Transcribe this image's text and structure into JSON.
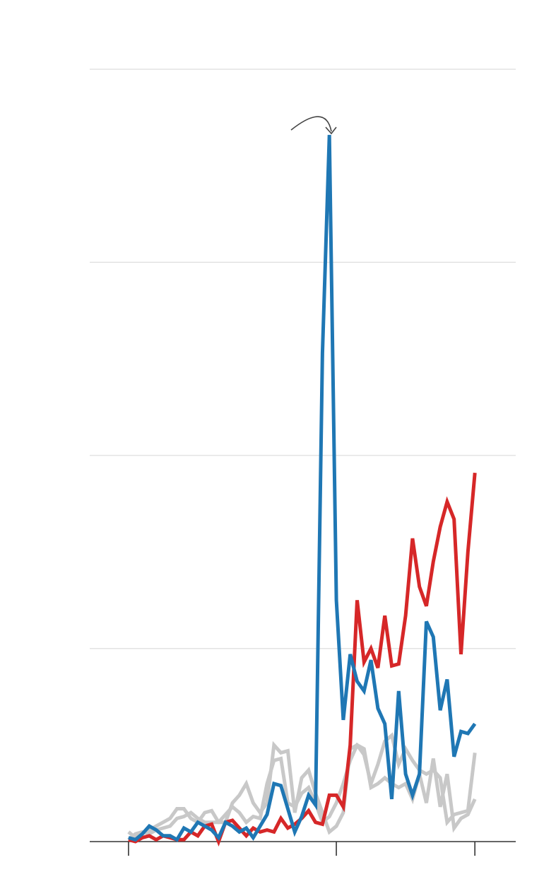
{
  "chart_data": {
    "type": "line",
    "x": [
      0,
      1,
      2,
      3,
      4,
      5,
      6,
      7,
      8,
      9,
      10,
      11,
      12,
      13,
      14,
      15,
      16,
      17,
      18,
      19,
      20,
      21,
      22,
      23,
      24,
      25,
      26,
      27,
      28,
      29,
      30,
      31,
      32,
      33,
      34,
      35,
      36,
      37,
      38,
      39,
      40,
      41,
      42,
      43,
      44,
      45,
      46,
      47,
      48,
      49,
      50
    ],
    "series": [
      {
        "color": "#c8c8c8",
        "values": [
          0.05,
          0.02,
          0.04,
          0.06,
          0.08,
          0.1,
          0.12,
          0.17,
          0.17,
          0.12,
          0.1,
          0.15,
          0.16,
          0.1,
          0.1,
          0.2,
          0.24,
          0.3,
          0.2,
          0.15,
          0.2,
          0.5,
          0.46,
          0.47,
          0.15,
          0.33,
          0.37,
          0.25,
          0.15,
          0.05,
          0.08,
          0.15,
          0.48,
          0.5,
          0.45,
          0.3,
          0.4,
          0.52,
          0.55,
          0.4,
          0.48,
          0.42,
          0.37,
          0.35,
          0.37,
          0.33,
          0.1,
          0.14,
          0.15,
          0.16,
          0.46
        ]
      },
      {
        "color": "#c8c8c8",
        "values": [
          0.01,
          0.04,
          0.05,
          0.04,
          0.06,
          0.07,
          0.08,
          0.12,
          0.13,
          0.15,
          0.12,
          0.1,
          0.1,
          0.1,
          0.14,
          0.18,
          0.15,
          0.1,
          0.13,
          0.12,
          0.3,
          0.42,
          0.43,
          0.2,
          0.18,
          0.25,
          0.28,
          0.2,
          0.1,
          0.13,
          0.2,
          0.3,
          0.42,
          0.5,
          0.48,
          0.28,
          0.3,
          0.33,
          0.3,
          0.28,
          0.3,
          0.22,
          0.35,
          0.2,
          0.43,
          0.18,
          0.35,
          0.07,
          0.12,
          0.14,
          0.22
        ]
      },
      {
        "color": "#d62728",
        "values": [
          0.01,
          0.0,
          0.02,
          0.03,
          0.01,
          0.03,
          0.02,
          0.01,
          0.01,
          0.05,
          0.03,
          0.08,
          0.09,
          0.0,
          0.1,
          0.11,
          0.07,
          0.03,
          0.07,
          0.05,
          0.06,
          0.05,
          0.12,
          0.07,
          0.09,
          0.12,
          0.16,
          0.1,
          0.09,
          0.24,
          0.24,
          0.18,
          0.5,
          1.25,
          0.93,
          1.0,
          0.9,
          1.17,
          0.91,
          0.92,
          1.17,
          1.57,
          1.32,
          1.22,
          1.45,
          1.63,
          1.76,
          1.67,
          0.97,
          1.5,
          1.91
        ]
      },
      {
        "color": "#1f77b4",
        "values": [
          0.02,
          0.01,
          0.04,
          0.08,
          0.06,
          0.03,
          0.03,
          0.01,
          0.07,
          0.05,
          0.1,
          0.08,
          0.06,
          0.02,
          0.1,
          0.08,
          0.05,
          0.07,
          0.02,
          0.08,
          0.14,
          0.3,
          0.29,
          0.17,
          0.05,
          0.13,
          0.24,
          0.19,
          2.53,
          3.66,
          1.25,
          0.63,
          0.97,
          0.83,
          0.78,
          0.94,
          0.69,
          0.61,
          0.22,
          0.78,
          0.35,
          0.24,
          0.35,
          1.14,
          1.06,
          0.68,
          0.84,
          0.44,
          0.57,
          0.56,
          0.61
        ]
      }
    ],
    "xlim": [
      -5.6,
      55.9
    ],
    "xticks": [
      0,
      30,
      50
    ],
    "ylim": [
      0,
      4
    ],
    "yticks": [
      0,
      1,
      2,
      3,
      4
    ],
    "grid": true
  }
}
